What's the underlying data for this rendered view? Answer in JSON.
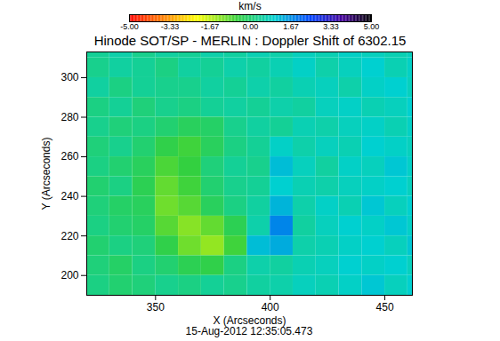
{
  "chart_data": {
    "type": "heatmap",
    "title": "Hinode SOT/SP - MERLIN : Doppler Shift of 6302.15",
    "caption": "15-Aug-2012 12:35:05.473",
    "x_label": "X (Arcseconds)",
    "y_label": "Y (Arcseconds)",
    "xlim": [
      320,
      462
    ],
    "ylim": [
      190,
      313
    ],
    "xticks": [
      350,
      400,
      450
    ],
    "yticks": [
      200,
      220,
      240,
      260,
      280,
      300
    ],
    "x": [
      320,
      330,
      340,
      350,
      360,
      370,
      380,
      390,
      400,
      410,
      420,
      430,
      440,
      450,
      460,
      470
    ],
    "y": [
      320,
      310,
      300,
      290,
      280,
      270,
      260,
      250,
      240,
      230,
      220,
      210,
      200,
      190
    ],
    "z": [
      [
        0.4,
        0.6,
        0.3,
        0.5,
        0.4,
        0.6,
        0.5,
        0.7,
        0.6,
        0.8,
        0.7,
        0.9,
        0.8,
        0.7,
        0.8
      ],
      [
        0.3,
        0.5,
        0.4,
        0.2,
        0.5,
        0.4,
        0.6,
        0.5,
        0.7,
        0.9,
        0.6,
        0.8,
        1.0,
        0.7,
        0.9
      ],
      [
        0.5,
        0.2,
        0.4,
        0.3,
        0.3,
        0.5,
        0.4,
        0.6,
        0.5,
        0.7,
        0.8,
        0.6,
        0.9,
        1.0,
        0.8
      ],
      [
        0.2,
        0.4,
        0.1,
        0.3,
        0.2,
        0.4,
        0.5,
        0.4,
        0.6,
        0.5,
        0.8,
        0.9,
        0.7,
        0.8,
        1.0
      ],
      [
        0.3,
        0.1,
        0.2,
        0.0,
        -0.2,
        -0.1,
        0.3,
        0.5,
        0.4,
        0.7,
        0.6,
        0.8,
        0.9,
        0.7,
        0.9
      ],
      [
        0.1,
        0.3,
        0.0,
        -0.4,
        -0.6,
        -0.2,
        0.2,
        0.4,
        0.9,
        0.6,
        0.8,
        0.7,
        1.0,
        0.9,
        0.8
      ],
      [
        0.2,
        0.0,
        -0.2,
        -0.7,
        -0.5,
        0.1,
        0.4,
        0.3,
        1.2,
        0.8,
        0.5,
        0.9,
        0.8,
        1.1,
        0.9
      ],
      [
        0.0,
        0.2,
        -0.3,
        -0.9,
        -0.6,
        0.0,
        0.3,
        0.4,
        1.0,
        0.7,
        0.6,
        0.8,
        0.9,
        1.0,
        0.8
      ],
      [
        0.1,
        -0.1,
        -0.2,
        -1.0,
        -0.8,
        -0.2,
        0.2,
        0.5,
        1.3,
        0.6,
        0.9,
        0.7,
        1.1,
        0.8,
        1.0
      ],
      [
        0.2,
        0.0,
        -0.1,
        -0.8,
        -1.2,
        -0.9,
        -0.3,
        0.6,
        1.8,
        0.5,
        0.8,
        1.0,
        0.9,
        1.1,
        0.9
      ],
      [
        0.0,
        0.2,
        0.1,
        -0.4,
        -1.0,
        -1.3,
        -0.6,
        1.2,
        1.4,
        0.6,
        0.7,
        0.9,
        1.0,
        0.8,
        1.1
      ],
      [
        0.1,
        -0.1,
        0.2,
        0.0,
        -0.3,
        -0.4,
        0.2,
        0.6,
        0.5,
        0.7,
        0.8,
        1.0,
        0.9,
        1.0,
        0.8
      ],
      [
        0.2,
        0.0,
        0.1,
        0.3,
        0.2,
        0.4,
        0.3,
        0.5,
        0.6,
        0.8,
        0.7,
        0.9,
        1.1,
        0.8,
        1.0
      ]
    ],
    "colorbar": {
      "label": "km/s",
      "range": [
        -5,
        5
      ],
      "ticks": [
        {
          "value": -5,
          "label": "-5.00"
        },
        -3.33,
        -1.67,
        {
          "value": 0,
          "label": "0.00"
        },
        1.67,
        3.33,
        {
          "value": 5,
          "label": "5.00"
        }
      ]
    }
  }
}
